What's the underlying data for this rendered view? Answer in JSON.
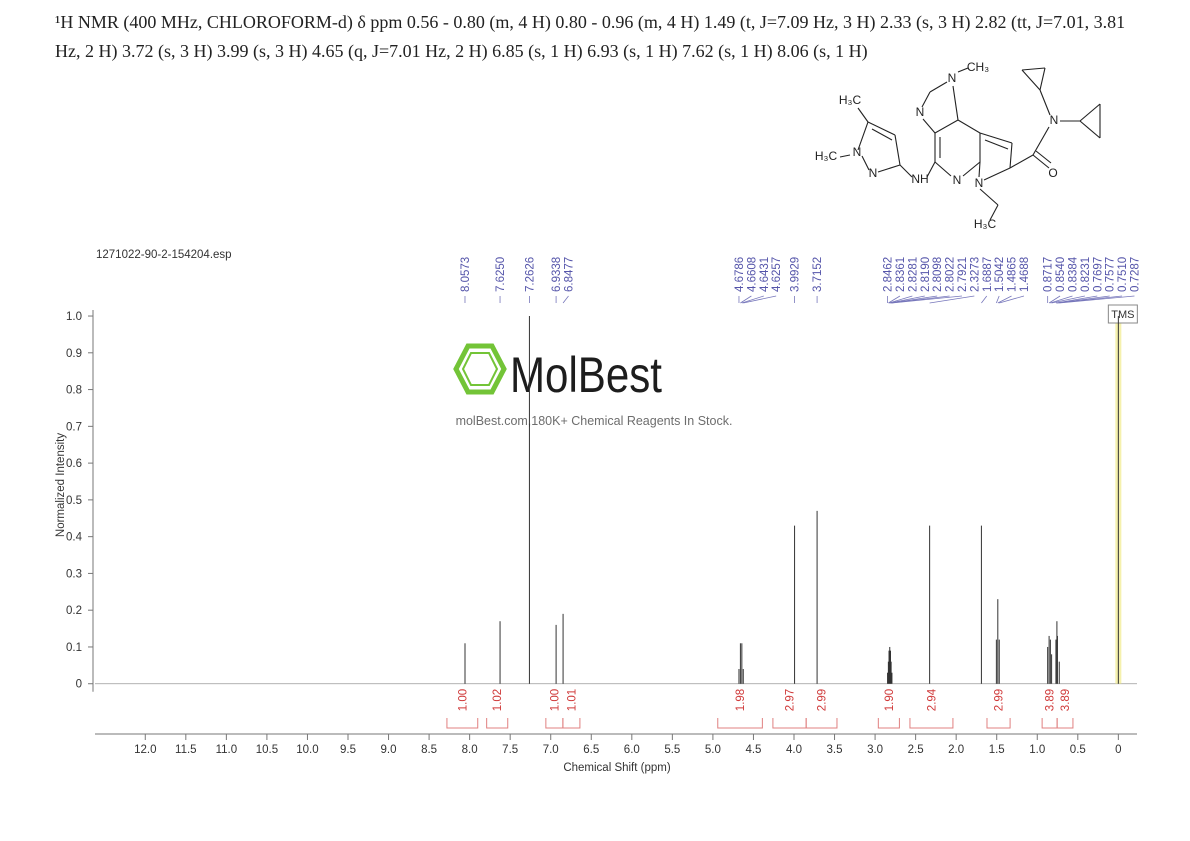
{
  "header": {
    "text": "¹H NMR (400 MHz, CHLOROFORM-d) δ ppm 0.56 - 0.80 (m, 4 H) 0.80 - 0.96 (m, 4 H) 1.49 (t, J=7.09 Hz, 3 H) 2.33 (s, 3 H) 2.82 (tt, J=7.01, 3.81 Hz, 2 H) 3.72 (s, 3 H) 3.99 (s, 3 H) 4.65 (q, J=7.01 Hz, 2 H) 6.85 (s, 1 H) 6.93 (s, 1 H) 7.62 (s, 1 H) 8.06 (s, 1 H)"
  },
  "structure": {
    "labels": [
      "H₃C",
      "N",
      "N",
      "H₃C",
      "NH",
      "N",
      "N",
      "CH₃",
      "N",
      "N",
      "H₃C",
      "O",
      "N"
    ]
  },
  "watermark": {
    "brand": "MolBest",
    "tagline": "molBest.com,180K+ Chemical Reagents In Stock."
  },
  "chart_data": {
    "type": "nmr",
    "file_name": "1271022-90-2-154204.esp",
    "x_label": "Chemical Shift (ppm)",
    "y_label": "Normalized Intensity",
    "reference_label": "TMS",
    "xlim": [
      12.62,
      -0.23
    ],
    "ylim": [
      -0.134,
      1.03
    ],
    "xticks": [
      {
        "value": 12,
        "label": "12.0"
      },
      11.5,
      {
        "value": 11,
        "label": "11.0"
      },
      10.5,
      {
        "value": 10,
        "label": "10.0"
      },
      9.5,
      {
        "value": 9,
        "label": "9.0"
      },
      8.5,
      {
        "value": 8,
        "label": "8.0"
      },
      7.5,
      {
        "value": 7,
        "label": "7.0"
      },
      6.5,
      {
        "value": 6,
        "label": "6.0"
      },
      5.5,
      {
        "value": 5,
        "label": "5.0"
      },
      4.5,
      {
        "value": 4,
        "label": "4.0"
      },
      3.5,
      {
        "value": 3,
        "label": "3.0"
      },
      2.5,
      {
        "value": 2,
        "label": "2.0"
      },
      1.5,
      {
        "value": 1,
        "label": "1.0"
      },
      0.5,
      0
    ],
    "yticks": [
      0,
      0.1,
      0.2,
      0.3,
      0.4,
      0.5,
      0.6,
      0.7,
      0.8,
      0.9,
      {
        "value": 1,
        "label": "1.0"
      }
    ],
    "color": "#333333",
    "spectrum": {
      "x": [
        8.0573,
        7.625,
        7.2626,
        6.9338,
        6.8477,
        4.6786,
        4.6608,
        4.6431,
        4.6257,
        3.9929,
        3.7152,
        2.8462,
        2.8361,
        2.8281,
        2.819,
        2.8098,
        2.8022,
        2.7921,
        2.3273,
        1.6887,
        1.5042,
        1.4865,
        1.4688,
        0.8717,
        0.854,
        0.8384,
        0.8231,
        0.7697,
        0.7577,
        0.751,
        0.7287,
        0
      ],
      "values": [
        0.11,
        0.17,
        1.0,
        0.16,
        0.19,
        0.04,
        0.11,
        0.11,
        0.04,
        0.43,
        0.47,
        0.03,
        0.06,
        0.09,
        0.1,
        0.09,
        0.06,
        0.03,
        0.43,
        0.43,
        0.12,
        0.23,
        0.12,
        0.1,
        0.13,
        0.12,
        0.08,
        0.12,
        0.17,
        0.13,
        0.06,
        1.0
      ]
    },
    "peak_labels": [
      {
        "value": 8.0573,
        "label": "8.0573"
      },
      {
        "value": 7.625,
        "label": "7.6250"
      },
      {
        "value": 7.2626,
        "label": "7.2626"
      },
      {
        "value": 6.9338,
        "label": "6.9338"
      },
      {
        "value": 6.8477,
        "label": "6.8477"
      },
      {
        "value": 4.6786,
        "label": "4.6786"
      },
      {
        "value": 4.6608,
        "label": "4.6608"
      },
      {
        "value": 4.6431,
        "label": "4.6431"
      },
      {
        "value": 4.6257,
        "label": "4.6257"
      },
      {
        "value": 3.9929,
        "label": "3.9929"
      },
      {
        "value": 3.7152,
        "label": "3.7152"
      },
      {
        "value": 2.8462,
        "label": "2.8462"
      },
      {
        "value": 2.8361,
        "label": "2.8361"
      },
      {
        "value": 2.8281,
        "label": "2.8281"
      },
      {
        "value": 2.819,
        "label": "2.8190"
      },
      {
        "value": 2.8098,
        "label": "2.8098"
      },
      {
        "value": 2.8022,
        "label": "2.8022"
      },
      {
        "value": 2.7921,
        "label": "2.7921"
      },
      {
        "value": 2.3273,
        "label": "2.3273"
      },
      {
        "value": 1.6887,
        "label": "1.6887"
      },
      {
        "value": 1.5042,
        "label": "1.5042"
      },
      {
        "value": 1.4865,
        "label": "1.4865"
      },
      {
        "value": 1.4688,
        "label": "1.4688"
      },
      {
        "value": 0.8717,
        "label": "0.8717"
      },
      {
        "value": 0.854,
        "label": "0.8540"
      },
      {
        "value": 0.8384,
        "label": "0.8384"
      },
      {
        "value": 0.8231,
        "label": "0.8231"
      },
      {
        "value": 0.7697,
        "label": "0.7697"
      },
      {
        "value": 0.7577,
        "label": "0.7577"
      },
      {
        "value": 0.751,
        "label": "0.7510"
      },
      {
        "value": 0.7287,
        "label": "0.7287"
      }
    ],
    "integrals": [
      {
        "from": 8.28,
        "to": 7.9,
        "value": 1,
        "label": "1.00"
      },
      {
        "from": 7.79,
        "to": 7.53,
        "value": 1.02,
        "label": "1.02"
      },
      {
        "from": 7.06,
        "to": 6.85,
        "value": 1,
        "label": "1.00"
      },
      {
        "from": 6.85,
        "to": 6.64,
        "value": 1.01,
        "label": "1.01"
      },
      {
        "from": 4.94,
        "to": 4.39,
        "value": 1.98,
        "label": "1.98"
      },
      {
        "from": 4.26,
        "to": 3.85,
        "value": 2.97,
        "label": "2.97"
      },
      {
        "from": 3.85,
        "to": 3.47,
        "value": 2.99,
        "label": "2.99"
      },
      {
        "from": 2.96,
        "to": 2.7,
        "value": 1.9,
        "label": "1.90"
      },
      {
        "from": 2.57,
        "to": 2.04,
        "value": 2.94,
        "label": "2.94"
      },
      {
        "from": 1.62,
        "to": 1.335,
        "value": 2.99,
        "label": "2.99"
      },
      {
        "from": 0.94,
        "to": 0.755,
        "value": 3.89,
        "label": "3.89"
      },
      {
        "from": 0.755,
        "to": 0.56,
        "value": 3.89,
        "label": "3.89"
      }
    ]
  }
}
